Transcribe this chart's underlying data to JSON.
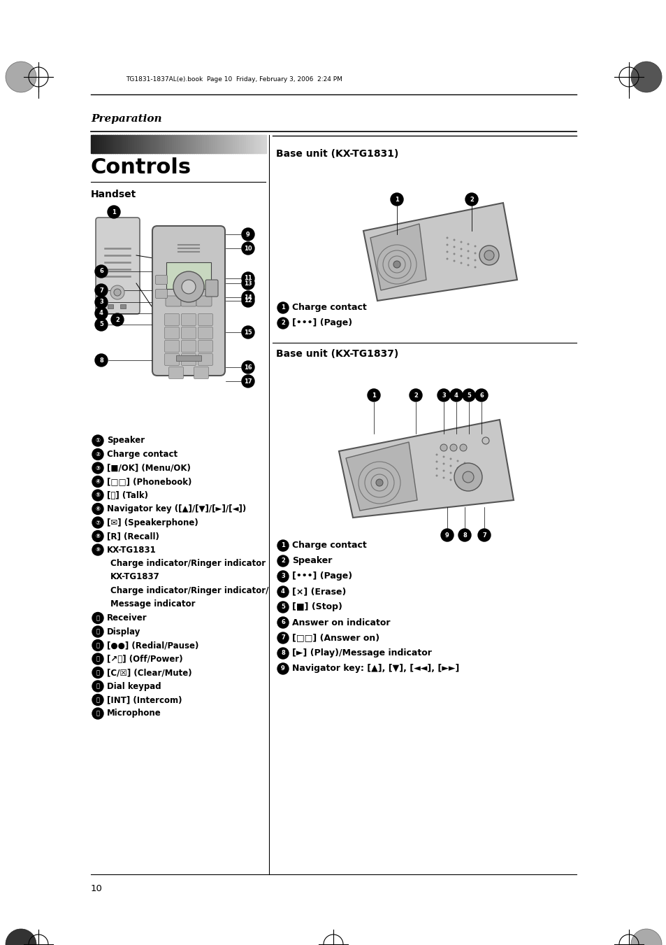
{
  "page_bg": "#ffffff",
  "header_text": "TG1831-1837AL(e).book  Page 10  Friday, February 3, 2006  2:24 PM",
  "section_title": "Preparation",
  "controls_title": "Controls",
  "handset_label": "Handset",
  "base_unit_1_label": "Base unit (KX-TG1831)",
  "base_unit_2_label": "Base unit (KX-TG1837)",
  "handset_items_col1": [
    [
      "①",
      "Speaker"
    ],
    [
      "②",
      "Charge contact"
    ],
    [
      "③",
      "[■/OK] (Menu/OK)"
    ],
    [
      "④",
      "[□□] (Phonebook)"
    ],
    [
      "⑤",
      "[⤵] (Talk)"
    ],
    [
      "⑥",
      "Navigator key ([▲]/[▼]/[►]/[◄])"
    ],
    [
      "⑦",
      "[✉] (Speakerphone)"
    ],
    [
      "⑧",
      "[R] (Recall)"
    ],
    [
      "⑨",
      "KX-TG1831"
    ],
    [
      "",
      "Charge indicator/Ringer indicator"
    ],
    [
      "",
      "KX-TG1837"
    ],
    [
      "",
      "Charge indicator/Ringer indicator/"
    ],
    [
      "",
      "Message indicator"
    ],
    [
      "⑪",
      "Receiver"
    ],
    [
      "⑫",
      "Display"
    ],
    [
      "⑬",
      "[●●] (Redial/Pause)"
    ],
    [
      "⑭",
      "[↗ⓞ] (Off/Power)"
    ],
    [
      "⑮",
      "[C/☒] (Clear/Mute)"
    ],
    [
      "⑯",
      "Dial keypad"
    ],
    [
      "⑰",
      "[INT] (Intercom)"
    ],
    [
      "⑱",
      "Microphone"
    ]
  ],
  "base1_items": [
    [
      "①",
      "Charge contact"
    ],
    [
      "②",
      "[•••)] (Page)"
    ]
  ],
  "base2_items": [
    [
      "①",
      "Charge contact"
    ],
    [
      "②",
      "Speaker"
    ],
    [
      "③",
      "[•••)] (Page)"
    ],
    [
      "④",
      "[×] (Erase)"
    ],
    [
      "⑤",
      "[■] (Stop)"
    ],
    [
      "⑥",
      "Answer on indicator"
    ],
    [
      "⑦",
      "[□□] (Answer on)"
    ],
    [
      "⑧",
      "[►] (Play)/Message indicator"
    ],
    [
      "⑨",
      "Navigator key: [▲], [▼], [◄◄], [►►]"
    ]
  ],
  "page_number": "10"
}
